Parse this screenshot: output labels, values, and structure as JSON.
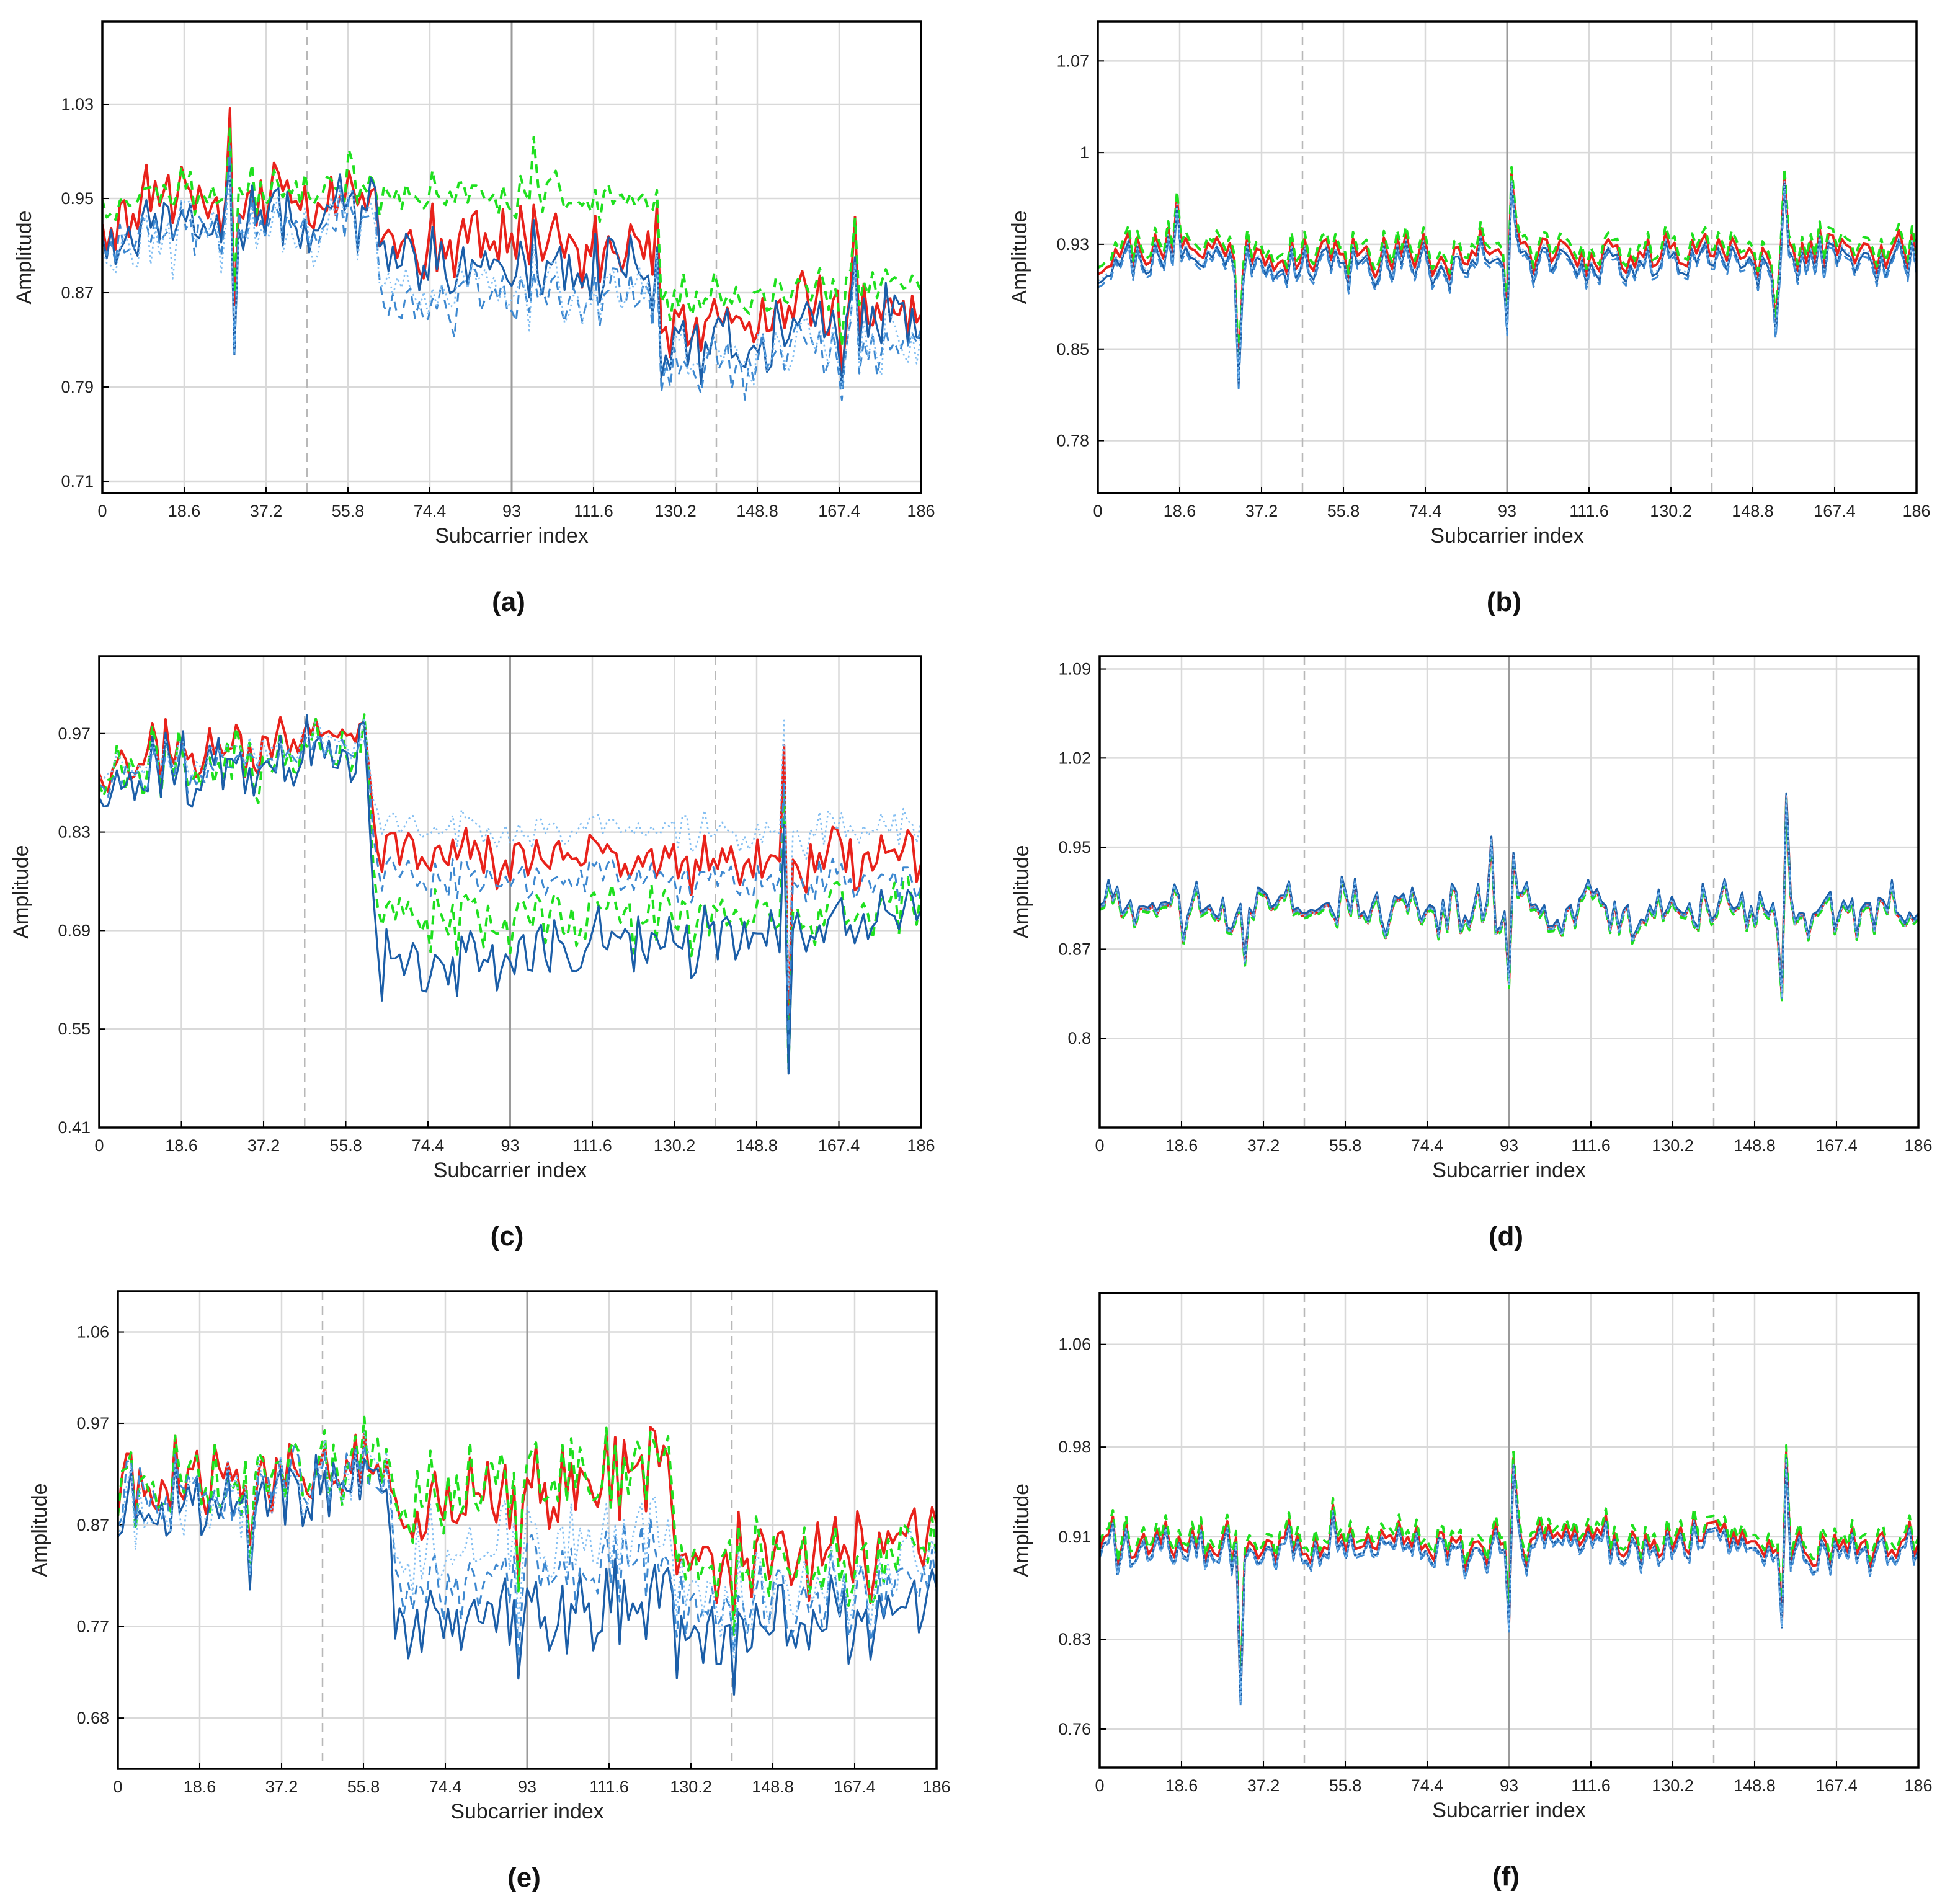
{
  "figure": {
    "colors": {
      "red": "#e8221b",
      "green": "#1fe01f",
      "dark_blue": "#1b5ea8",
      "mid_blue": "#3d88d0",
      "light_blue": "#84bff2",
      "grid": "#d9d9d9",
      "axis": "#000000"
    }
  },
  "chart_data": [
    {
      "panel_label": "(a)",
      "type": "line",
      "xlabel": "Subcarrier index",
      "ylabel": "Amplitude",
      "xlim": [
        0,
        186
      ],
      "ylim": [
        0.7,
        1.1
      ],
      "xticks": [
        "0",
        "18.6",
        "37.2",
        "55.8",
        "74.4",
        "93",
        "111.6",
        "130.2",
        "148.8",
        "167.4",
        "186"
      ],
      "yticks": [
        {
          "v": 0.71,
          "t": "0.71"
        },
        {
          "v": 0.79,
          "t": "0.79"
        },
        {
          "v": 0.87,
          "t": "0.87"
        },
        {
          "v": 0.95,
          "t": "0.95"
        },
        {
          "v": 1.03,
          "t": "1.03"
        }
      ],
      "vlines_dashed": [
        46.5,
        139.5
      ],
      "vline_solid": [
        93
      ],
      "series": [
        {
          "name": "red",
          "style": "solid",
          "levels": [
            [
              0,
              0.93
            ],
            [
              10,
              0.95
            ],
            [
              62,
              0.95
            ],
            [
              64,
              0.91
            ],
            [
              126,
              0.91
            ],
            [
              127,
              0.84
            ],
            [
              186,
              0.86
            ]
          ],
          "amp": 0.03,
          "seed": 11
        },
        {
          "name": "green-dashed",
          "style": "dashed",
          "levels": [
            [
              0,
              0.95
            ],
            [
              62,
              0.96
            ],
            [
              64,
              0.95
            ],
            [
              126,
              0.95
            ],
            [
              127,
              0.86
            ],
            [
              186,
              0.88
            ]
          ],
          "amp": 0.02,
          "seed": 12
        },
        {
          "name": "dark-blue",
          "style": "solid",
          "levels": [
            [
              0,
              0.92
            ],
            [
              62,
              0.94
            ],
            [
              64,
              0.89
            ],
            [
              126,
              0.89
            ],
            [
              127,
              0.82
            ],
            [
              186,
              0.85
            ]
          ],
          "amp": 0.03,
          "seed": 13
        },
        {
          "name": "mid-blue-dashed",
          "style": "dashed",
          "levels": [
            [
              0,
              0.92
            ],
            [
              62,
              0.93
            ],
            [
              64,
              0.86
            ],
            [
              126,
              0.87
            ],
            [
              127,
              0.8
            ],
            [
              186,
              0.83
            ]
          ],
          "amp": 0.03,
          "seed": 14
        },
        {
          "name": "light-blue-dotted",
          "style": "dotted",
          "levels": [
            [
              0,
              0.91
            ],
            [
              62,
              0.93
            ],
            [
              64,
              0.87
            ],
            [
              126,
              0.87
            ],
            [
              127,
              0.81
            ],
            [
              186,
              0.83
            ]
          ],
          "amp": 0.03,
          "seed": 15
        }
      ],
      "spikes": [
        {
          "x": 30,
          "dy": -0.09
        },
        {
          "x": 29,
          "dy": 0.05
        },
        {
          "x": 56,
          "dy": 0.04
        },
        {
          "x": 98,
          "dy": 0.05
        },
        {
          "x": 168,
          "dy": -0.06
        },
        {
          "x": 171,
          "dy": 0.05
        }
      ]
    },
    {
      "panel_label": "(b)",
      "type": "line",
      "xlabel": "Subcarrier index",
      "ylabel": "Amplitude",
      "xlim": [
        0,
        186
      ],
      "ylim": [
        0.74,
        1.1
      ],
      "xticks": [
        "0",
        "18.6",
        "37.2",
        "55.8",
        "74.4",
        "93",
        "111.6",
        "130.2",
        "148.8",
        "167.4",
        "186"
      ],
      "yticks": [
        {
          "v": 0.78,
          "t": "0.78"
        },
        {
          "v": 0.85,
          "t": "0.85"
        },
        {
          "v": 0.93,
          "t": "0.93"
        },
        {
          "v": 1.0,
          "t": "1"
        },
        {
          "v": 1.07,
          "t": "1.07"
        }
      ],
      "vlines_dashed": [
        46.5,
        139.5
      ],
      "vline_solid": [
        93
      ],
      "series": [
        {
          "name": "red",
          "style": "solid",
          "levels": [
            [
              0,
              0.925
            ],
            [
              186,
              0.925
            ]
          ],
          "amp": 0.018,
          "seed": 21
        },
        {
          "name": "green-dashed",
          "style": "dashed",
          "levels": [
            [
              0,
              0.93
            ],
            [
              186,
              0.93
            ]
          ],
          "amp": 0.018,
          "seed": 21
        },
        {
          "name": "dark-blue",
          "style": "solid",
          "levels": [
            [
              0,
              0.918
            ],
            [
              186,
              0.918
            ]
          ],
          "amp": 0.018,
          "seed": 21
        },
        {
          "name": "mid-blue-dashed",
          "style": "dashed",
          "levels": [
            [
              0,
              0.915
            ],
            [
              186,
              0.915
            ]
          ],
          "amp": 0.018,
          "seed": 21
        },
        {
          "name": "light-blue-dotted",
          "style": "dotted",
          "levels": [
            [
              0,
              0.92
            ],
            [
              186,
              0.92
            ]
          ],
          "amp": 0.018,
          "seed": 21
        }
      ],
      "spikes": [
        {
          "x": 32,
          "dy": -0.1
        },
        {
          "x": 93,
          "dy": -0.08
        },
        {
          "x": 94,
          "dy": 0.07
        },
        {
          "x": 154,
          "dy": -0.06
        },
        {
          "x": 156,
          "dy": 0.07
        },
        {
          "x": 18,
          "dy": 0.03
        }
      ]
    },
    {
      "panel_label": "(c)",
      "type": "line",
      "xlabel": "Subcarrier index",
      "ylabel": "Amplitude",
      "xlim": [
        0,
        186
      ],
      "ylim": [
        0.41,
        1.08
      ],
      "xticks": [
        "0",
        "18.6",
        "37.2",
        "55.8",
        "74.4",
        "93",
        "111.6",
        "130.2",
        "148.8",
        "167.4",
        "186"
      ],
      "yticks": [
        {
          "v": 0.41,
          "t": "0.41"
        },
        {
          "v": 0.55,
          "t": "0.55"
        },
        {
          "v": 0.69,
          "t": "0.69"
        },
        {
          "v": 0.83,
          "t": "0.83"
        },
        {
          "v": 0.97,
          "t": "0.97"
        }
      ],
      "vlines_dashed": [
        46.5,
        139.5
      ],
      "vline_solid": [
        93
      ],
      "series": [
        {
          "name": "red",
          "style": "solid",
          "levels": [
            [
              0,
              0.93
            ],
            [
              60,
              0.97
            ],
            [
              63,
              0.79
            ],
            [
              186,
              0.79
            ]
          ],
          "amp": 0.04,
          "seed": 31
        },
        {
          "name": "green-dashed",
          "style": "dashed",
          "levels": [
            [
              0,
              0.92
            ],
            [
              60,
              0.94
            ],
            [
              63,
              0.7
            ],
            [
              186,
              0.72
            ]
          ],
          "amp": 0.05,
          "seed": 32
        },
        {
          "name": "dark-blue",
          "style": "solid",
          "levels": [
            [
              0,
              0.9
            ],
            [
              60,
              0.95
            ],
            [
              63,
              0.63
            ],
            [
              186,
              0.71
            ]
          ],
          "amp": 0.05,
          "seed": 33
        },
        {
          "name": "mid-blue-dashed",
          "style": "dashed",
          "levels": [
            [
              0,
              0.91
            ],
            [
              60,
              0.95
            ],
            [
              63,
              0.76
            ],
            [
              186,
              0.76
            ]
          ],
          "amp": 0.03,
          "seed": 34
        },
        {
          "name": "light-blue-dotted",
          "style": "dotted",
          "levels": [
            [
              0,
              0.92
            ],
            [
              60,
              0.96
            ],
            [
              63,
              0.83
            ],
            [
              186,
              0.83
            ]
          ],
          "amp": 0.03,
          "seed": 35
        }
      ],
      "spikes": [
        {
          "x": 155,
          "dy": 0.17
        },
        {
          "x": 156,
          "dy": -0.25
        }
      ]
    },
    {
      "panel_label": "(d)",
      "type": "line",
      "xlabel": "Subcarrier index",
      "ylabel": "Amplitude",
      "xlim": [
        0,
        186
      ],
      "ylim": [
        0.73,
        1.1
      ],
      "xticks": [
        "0",
        "18.6",
        "37.2",
        "55.8",
        "74.4",
        "93",
        "111.6",
        "130.2",
        "148.8",
        "167.4",
        "186"
      ],
      "yticks": [
        {
          "v": 0.8,
          "t": "0.8"
        },
        {
          "v": 0.87,
          "t": "0.87"
        },
        {
          "v": 0.95,
          "t": "0.95"
        },
        {
          "v": 1.02,
          "t": "1.02"
        },
        {
          "v": 1.09,
          "t": "1.09"
        }
      ],
      "vlines_dashed": [
        46.5,
        139.5
      ],
      "vline_solid": [
        93
      ],
      "series": [
        {
          "name": "red",
          "style": "solid",
          "levels": [
            [
              0,
              0.9
            ],
            [
              186,
              0.9
            ]
          ],
          "amp": 0.02,
          "seed": 41
        },
        {
          "name": "green-dashed",
          "style": "dashed",
          "levels": [
            [
              0,
              0.898
            ],
            [
              186,
              0.898
            ]
          ],
          "amp": 0.02,
          "seed": 41
        },
        {
          "name": "dark-blue",
          "style": "solid",
          "levels": [
            [
              0,
              0.902
            ],
            [
              186,
              0.902
            ]
          ],
          "amp": 0.02,
          "seed": 41
        },
        {
          "name": "mid-blue-dashed",
          "style": "dashed",
          "levels": [
            [
              0,
              0.9
            ],
            [
              186,
              0.9
            ]
          ],
          "amp": 0.02,
          "seed": 41
        },
        {
          "name": "light-blue-dotted",
          "style": "dotted",
          "levels": [
            [
              0,
              0.9
            ],
            [
              186,
              0.9
            ]
          ],
          "amp": 0.02,
          "seed": 41
        }
      ],
      "spikes": [
        {
          "x": 93,
          "dy": -0.07
        },
        {
          "x": 94,
          "dy": 0.05
        },
        {
          "x": 155,
          "dy": -0.08
        },
        {
          "x": 156,
          "dy": 0.11
        },
        {
          "x": 33,
          "dy": -0.05
        },
        {
          "x": 89,
          "dy": 0.04
        }
      ]
    },
    {
      "panel_label": "(e)",
      "type": "line",
      "xlabel": "Subcarrier index",
      "ylabel": "Amplitude",
      "xlim": [
        0,
        186
      ],
      "ylim": [
        0.63,
        1.1
      ],
      "xticks": [
        "0",
        "18.6",
        "37.2",
        "55.8",
        "74.4",
        "93",
        "111.6",
        "130.2",
        "148.8",
        "167.4",
        "186"
      ],
      "yticks": [
        {
          "v": 0.68,
          "t": "0.68"
        },
        {
          "v": 0.77,
          "t": "0.77"
        },
        {
          "v": 0.87,
          "t": "0.87"
        },
        {
          "v": 0.97,
          "t": "0.97"
        },
        {
          "v": 1.06,
          "t": "1.06"
        }
      ],
      "vlines_dashed": [
        46.5,
        139.5
      ],
      "vline_solid": [
        93
      ],
      "series": [
        {
          "name": "red",
          "style": "solid",
          "levels": [
            [
              0,
              0.91
            ],
            [
              60,
              0.93
            ],
            [
              63,
              0.88
            ],
            [
              125,
              0.93
            ],
            [
              127,
              0.84
            ],
            [
              186,
              0.85
            ]
          ],
          "amp": 0.04,
          "seed": 51
        },
        {
          "name": "green-dashed",
          "style": "dashed",
          "levels": [
            [
              0,
              0.91
            ],
            [
              60,
              0.93
            ],
            [
              63,
              0.89
            ],
            [
              125,
              0.94
            ],
            [
              127,
              0.84
            ],
            [
              186,
              0.84
            ]
          ],
          "amp": 0.04,
          "seed": 52
        },
        {
          "name": "dark-blue",
          "style": "solid",
          "levels": [
            [
              0,
              0.89
            ],
            [
              60,
              0.92
            ],
            [
              63,
              0.77
            ],
            [
              125,
              0.8
            ],
            [
              127,
              0.76
            ],
            [
              186,
              0.79
            ]
          ],
          "amp": 0.04,
          "seed": 53
        },
        {
          "name": "mid-blue-dashed",
          "style": "dashed",
          "levels": [
            [
              0,
              0.9
            ],
            [
              60,
              0.92
            ],
            [
              63,
              0.81
            ],
            [
              125,
              0.84
            ],
            [
              127,
              0.79
            ],
            [
              186,
              0.81
            ]
          ],
          "amp": 0.04,
          "seed": 54
        },
        {
          "name": "light-blue-dotted",
          "style": "dotted",
          "levels": [
            [
              0,
              0.89
            ],
            [
              60,
              0.92
            ],
            [
              63,
              0.84
            ],
            [
              125,
              0.87
            ],
            [
              127,
              0.8
            ],
            [
              186,
              0.82
            ]
          ],
          "amp": 0.04,
          "seed": 55
        }
      ],
      "spikes": [
        {
          "x": 30,
          "dy": -0.1
        },
        {
          "x": 91,
          "dy": -0.12
        },
        {
          "x": 13,
          "dy": 0.06
        },
        {
          "x": 140,
          "dy": -0.08
        },
        {
          "x": 171,
          "dy": -0.06
        }
      ]
    },
    {
      "panel_label": "(f)",
      "type": "line",
      "xlabel": "Subcarrier index",
      "ylabel": "Amplitude",
      "xlim": [
        0,
        186
      ],
      "ylim": [
        0.73,
        1.1
      ],
      "xticks": [
        "0",
        "18.6",
        "37.2",
        "55.8",
        "74.4",
        "93",
        "111.6",
        "130.2",
        "148.8",
        "167.4",
        "186"
      ],
      "yticks": [
        {
          "v": 0.76,
          "t": "0.76"
        },
        {
          "v": 0.83,
          "t": "0.83"
        },
        {
          "v": 0.91,
          "t": "0.91"
        },
        {
          "v": 0.98,
          "t": "0.98"
        },
        {
          "v": 1.06,
          "t": "1.06"
        }
      ],
      "vlines_dashed": [
        46.5,
        139.5
      ],
      "vline_solid": [
        93
      ],
      "series": [
        {
          "name": "red",
          "style": "solid",
          "levels": [
            [
              0,
              0.905
            ],
            [
              186,
              0.905
            ]
          ],
          "amp": 0.02,
          "seed": 61
        },
        {
          "name": "green-dashed",
          "style": "dashed",
          "levels": [
            [
              0,
              0.91
            ],
            [
              186,
              0.91
            ]
          ],
          "amp": 0.02,
          "seed": 61
        },
        {
          "name": "dark-blue",
          "style": "solid",
          "levels": [
            [
              0,
              0.9
            ],
            [
              186,
              0.9
            ]
          ],
          "amp": 0.02,
          "seed": 61
        },
        {
          "name": "mid-blue-dashed",
          "style": "dashed",
          "levels": [
            [
              0,
              0.898
            ],
            [
              186,
              0.898
            ]
          ],
          "amp": 0.02,
          "seed": 61
        },
        {
          "name": "light-blue-dotted",
          "style": "dotted",
          "levels": [
            [
              0,
              0.9
            ],
            [
              186,
              0.9
            ]
          ],
          "amp": 0.02,
          "seed": 61
        }
      ],
      "spikes": [
        {
          "x": 32,
          "dy": -0.11
        },
        {
          "x": 93,
          "dy": -0.07
        },
        {
          "x": 94,
          "dy": 0.08
        },
        {
          "x": 155,
          "dy": -0.06
        },
        {
          "x": 156,
          "dy": 0.08
        },
        {
          "x": 53,
          "dy": 0.04
        }
      ]
    }
  ]
}
